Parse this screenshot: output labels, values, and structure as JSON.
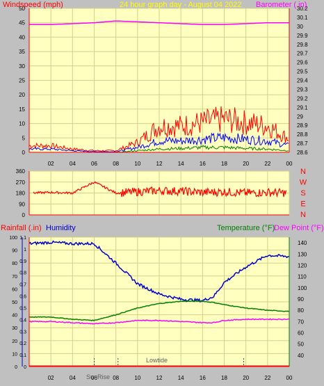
{
  "title": "24 hour graph day - August 04 2022",
  "colors": {
    "background": "#c0c0c0",
    "plot_bg": "#ffffc0",
    "grid": "#d4d08a",
    "axis_red": "#ff0000",
    "axis_blue": "#0000cc",
    "wind": "#ff0000",
    "gust": "#0000ff",
    "wind_low": "#008000",
    "barometer": "#ff00ff",
    "direction": "#ff0000",
    "humidity": "#0000cc",
    "temperature": "#008000",
    "dewpoint": "#ff00ff",
    "title": "#ffff00"
  },
  "x_ticks": [
    "02",
    "04",
    "06",
    "08",
    "10",
    "12",
    "14",
    "16",
    "18",
    "20",
    "22",
    "00"
  ],
  "chart_data": [
    {
      "type": "line",
      "name": "wind-barometer",
      "title": "24 hour graph day - August 04 2022",
      "ylabel_left": "Windspeed (mph)",
      "ylabel_right": "Barometer (.in)",
      "ylim_left": [
        0,
        50
      ],
      "ylim_right": [
        28.6,
        30.2
      ],
      "y_ticks_left": [
        "0",
        "5",
        "10",
        "15",
        "20",
        "25",
        "30",
        "35",
        "40",
        "45",
        "50"
      ],
      "y_ticks_right": [
        "28.6",
        "28.7",
        "28.8",
        "28.9",
        "29",
        "29.1",
        "29.2",
        "29.3",
        "29.4",
        "29.5",
        "29.6",
        "29.7",
        "29.8",
        "29.9",
        "30",
        "30.1",
        "30.2"
      ],
      "x": [
        0,
        2,
        4,
        6,
        8,
        10,
        12,
        14,
        16,
        18,
        20,
        22,
        24
      ],
      "series": [
        {
          "axis": "left",
          "values": [
            2,
            2,
            1,
            0.5,
            0.5,
            3,
            8,
            8,
            9,
            10,
            9,
            8,
            4
          ]
        },
        {
          "axis": "left",
          "values": [
            1,
            1,
            0.5,
            0.2,
            0.2,
            1.5,
            3.5,
            3.5,
            4,
            4.5,
            4,
            3.5,
            2
          ]
        },
        {
          "axis": "left",
          "values": [
            0,
            0,
            0,
            0,
            0,
            0.5,
            1,
            1.2,
            1.5,
            1.5,
            1.2,
            1,
            0.5
          ]
        },
        {
          "axis": "right",
          "values": [
            30.02,
            30.02,
            30.03,
            30.04,
            30.06,
            30.05,
            30.04,
            30.03,
            30.02,
            30.02,
            30.03,
            30.04,
            30.04
          ]
        }
      ]
    },
    {
      "type": "line",
      "name": "wind-direction",
      "ylim": [
        0,
        360
      ],
      "y_ticks": [
        "0",
        "90",
        "180",
        "270",
        "360"
      ],
      "compass": [
        "N",
        "W",
        "S",
        "E",
        "N"
      ],
      "x": [
        0,
        2,
        4,
        6,
        8,
        10,
        12,
        14,
        16,
        18,
        20,
        22,
        24
      ],
      "values": [
        180,
        185,
        180,
        270,
        180,
        190,
        200,
        195,
        185,
        190,
        180,
        185,
        180
      ]
    },
    {
      "type": "line",
      "name": "rain-humidity-temperature",
      "ylabel_left_rain": "Rainfall (.in)",
      "ylabel_left_humidity": "Humidity",
      "ylabel_right_temperature": "Temperature (°F)",
      "ylabel_right_dewpoint": "Dew Point (°F)",
      "ylim_rain": [
        0,
        1.1
      ],
      "ylim_humidity": [
        0,
        100
      ],
      "ylim_temperature": [
        30,
        145
      ],
      "y_ticks_rain": [
        "0",
        "0.05",
        "0.1",
        "0.15",
        "0.2",
        "0.25",
        "0.3",
        "0.35",
        "0.4",
        "0.45",
        "0.5",
        "0.55",
        "0.6",
        "0.65",
        "0.7",
        "0.75",
        "0.8",
        "0.85",
        "0.9",
        "0.95",
        "1",
        "1.05",
        "1.1"
      ],
      "y_ticks_humidity": [
        "0",
        "10",
        "20",
        "30",
        "40",
        "50",
        "60",
        "70",
        "80",
        "90",
        "100"
      ],
      "y_ticks_temperature": [
        "40",
        "50",
        "60",
        "70",
        "80",
        "90",
        "100",
        "110",
        "120",
        "130",
        "140"
      ],
      "x": [
        0,
        2,
        4,
        6,
        8,
        10,
        12,
        14,
        16,
        17,
        18,
        20,
        22,
        24
      ],
      "humidity": [
        95,
        96,
        95,
        95,
        80,
        64,
        56,
        52,
        51,
        54,
        65,
        77,
        86,
        85
      ],
      "temperature": [
        74,
        74,
        72,
        71,
        76,
        82,
        86,
        88,
        88,
        87,
        85,
        82,
        80,
        79
      ],
      "dewpoint": [
        70,
        70,
        69,
        68,
        69,
        71,
        71,
        70,
        69,
        69,
        71,
        72,
        72,
        72
      ],
      "rainfall": [
        0,
        0,
        0,
        0,
        0,
        0,
        0,
        0,
        0,
        0,
        0,
        0,
        0,
        0
      ],
      "annotations": [
        "SunRise",
        "Lowtide"
      ]
    }
  ]
}
